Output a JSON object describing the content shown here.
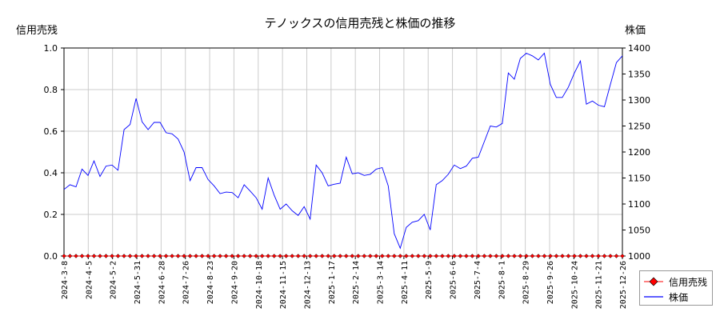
{
  "chart_data": {
    "type": "line",
    "title": "テノックスの信用売残と株価の推移",
    "ylabel_left": "信用売残",
    "ylabel_right": "株価",
    "ylim_left": [
      0,
      1.0
    ],
    "yticks_left": [
      "0.0",
      "0.2",
      "0.4",
      "0.6",
      "0.8",
      "1.0"
    ],
    "ylim_right": [
      1000,
      1400
    ],
    "yticks_right": [
      "1000",
      "1050",
      "1100",
      "1150",
      "1200",
      "1250",
      "1300",
      "1350",
      "1400"
    ],
    "xticks": [
      "2024-3-8",
      "2024-4-5",
      "2024-5-2",
      "2024-5-31",
      "2024-6-28",
      "2024-7-26",
      "2024-8-23",
      "2024-9-20",
      "2024-10-18",
      "2024-11-15",
      "2024-12-13",
      "2025-1-17",
      "2025-2-14",
      "2025-3-14",
      "2025-4-11",
      "2025-5-9",
      "2025-6-6",
      "2025-7-4",
      "2025-8-1",
      "2025-8-29",
      "2025-9-26",
      "2025-10-24",
      "2025-11-21",
      "2025-12-26"
    ],
    "grid": true,
    "legend_position": "bottom-right",
    "series": [
      {
        "name": "信用売残",
        "axis": "left",
        "color": "#ff0000",
        "marker": "diamond",
        "count": 94,
        "values_constant": 0
      },
      {
        "name": "株価",
        "axis": "right",
        "color": "#0000ff",
        "values": [
          1128,
          1137,
          1133,
          1167,
          1155,
          1183,
          1153,
          1173,
          1175,
          1165,
          1243,
          1253,
          1303,
          1258,
          1243,
          1257,
          1257,
          1237,
          1235,
          1225,
          1200,
          1145,
          1170,
          1170,
          1147,
          1135,
          1120,
          1123,
          1122,
          1112,
          1137,
          1125,
          1112,
          1090,
          1150,
          1117,
          1090,
          1100,
          1087,
          1078,
          1095,
          1071,
          1175,
          1160,
          1135,
          1138,
          1140,
          1190,
          1158,
          1160,
          1155,
          1157,
          1167,
          1170,
          1135,
          1043,
          1015,
          1055,
          1065,
          1068,
          1080,
          1050,
          1137,
          1145,
          1157,
          1175,
          1168,
          1173,
          1188,
          1190,
          1220,
          1250,
          1248,
          1255,
          1352,
          1340,
          1380,
          1390,
          1385,
          1377,
          1390,
          1330,
          1305,
          1305,
          1325,
          1352,
          1375,
          1292,
          1298,
          1290,
          1287,
          1330,
          1372,
          1385
        ]
      }
    ]
  },
  "legend": {
    "items": [
      {
        "label": "信用売残"
      },
      {
        "label": "株価"
      }
    ]
  }
}
